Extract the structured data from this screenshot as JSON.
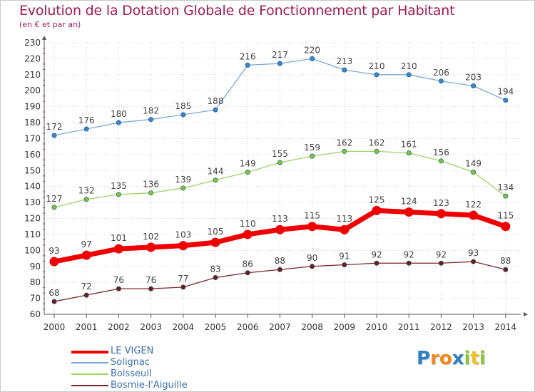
{
  "header": {
    "title": "Evolution de la Dotation Globale de Fonctionnement par Habitant",
    "subtitle": "(en € et par an)"
  },
  "logo": {
    "text": "Proxiti",
    "letters": [
      "P",
      "r",
      "o",
      "x",
      "i",
      "t",
      "i"
    ],
    "colors": [
      "#2f7fc1",
      "#f08a1d",
      "#f08a1d",
      "#2f7fc1",
      "#8dc63f",
      "#e8c21e",
      "#8dc63f"
    ]
  },
  "colors": {
    "title": "#a01a55",
    "axis": "#555555",
    "grid": "#d6d6d6",
    "tick_label": "#333333",
    "value_label": "#444444",
    "legend_label": "#3d6fb3",
    "axis_tick_mark": "#cc2244"
  },
  "chart_data": {
    "type": "line",
    "title": "Evolution de la Dotation Globale de Fonctionnement par Habitant",
    "subtitle": "(en € et par an)",
    "xlabel": "",
    "ylabel": "",
    "x": [
      "2000",
      "2001",
      "2002",
      "2003",
      "2004",
      "2005",
      "2006",
      "2007",
      "2008",
      "2009",
      "2010",
      "2011",
      "2012",
      "2013",
      "2014"
    ],
    "ylim": [
      60,
      230
    ],
    "yticks": [
      60,
      70,
      80,
      90,
      100,
      110,
      120,
      130,
      140,
      150,
      160,
      170,
      180,
      190,
      200,
      210,
      220,
      230
    ],
    "grid": true,
    "legend_position": "bottom-left",
    "series": [
      {
        "name": "LE VIGEN",
        "color": "#ee0000",
        "marker": "#ee0000",
        "emphasis": true,
        "values": [
          93,
          97,
          101,
          102,
          103,
          105,
          110,
          113,
          115,
          113,
          125,
          124,
          123,
          122,
          115
        ]
      },
      {
        "name": "Solignac",
        "color": "#7aaad8",
        "marker": "#3a86c8",
        "emphasis": false,
        "values": [
          172,
          176,
          180,
          182,
          185,
          188,
          216,
          217,
          220,
          213,
          210,
          210,
          206,
          203,
          194
        ]
      },
      {
        "name": "Boisseuil",
        "color": "#9fd46a",
        "marker": "#7fc241",
        "emphasis": false,
        "values": [
          127,
          132,
          135,
          136,
          139,
          144,
          149,
          155,
          159,
          162,
          162,
          161,
          156,
          149,
          134
        ]
      },
      {
        "name": "Bosmie-l'Aiguille",
        "color": "#7a2a2a",
        "marker": "#6a1f1f",
        "emphasis": false,
        "values": [
          68,
          72,
          76,
          76,
          77,
          83,
          86,
          88,
          90,
          91,
          92,
          92,
          92,
          93,
          88
        ]
      }
    ]
  }
}
